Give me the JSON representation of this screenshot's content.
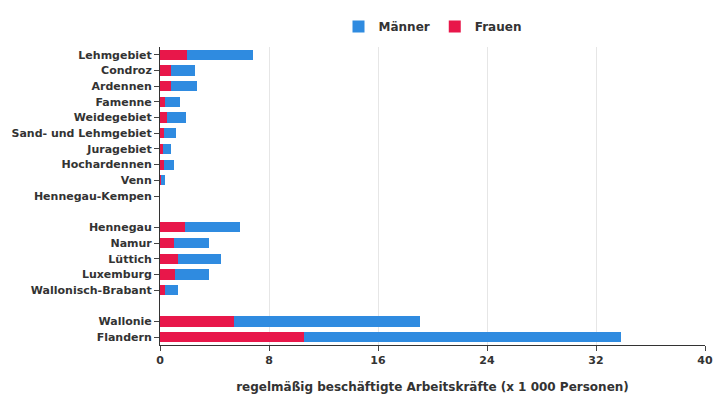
{
  "chart_data": {
    "type": "bar",
    "orientation": "horizontal",
    "stacked": true,
    "grid": true,
    "legend": "top",
    "x_label": "regelmäßig beschäftigte Arbeitskräfte (x 1 000 Personen)",
    "categories": [
      "Lehmgebiet",
      "Condroz",
      "Ardennen",
      "Famenne",
      "Weidegebiet",
      "Sand- und Lehmgebiet",
      "Juragebiet",
      "Hochardennen",
      "Venn",
      "Hennegau-Kempen",
      null,
      "Hennegau",
      "Namur",
      "Lüttich",
      "Luxemburg",
      "Wallonisch-Brabant",
      null,
      "Wallonie",
      "Flandern"
    ],
    "series": [
      {
        "name": "Frauen",
        "color": "#e8174a",
        "values": [
          2.0,
          0.8,
          0.8,
          0.4,
          0.5,
          0.3,
          0.2,
          0.3,
          0.1,
          0,
          null,
          1.8,
          1.0,
          1.3,
          1.1,
          0.4,
          null,
          5.4,
          10.6
        ]
      },
      {
        "name": "Männer",
        "color": "#2f8be0",
        "values": [
          4.8,
          1.8,
          1.9,
          1.1,
          1.4,
          0.9,
          0.6,
          0.7,
          0.3,
          0,
          null,
          4.1,
          2.6,
          3.2,
          2.5,
          0.9,
          null,
          13.7,
          23.2
        ]
      }
    ],
    "xlim": [
      0,
      40
    ],
    "xticks": [
      0,
      8,
      16,
      24,
      32,
      40
    ]
  }
}
